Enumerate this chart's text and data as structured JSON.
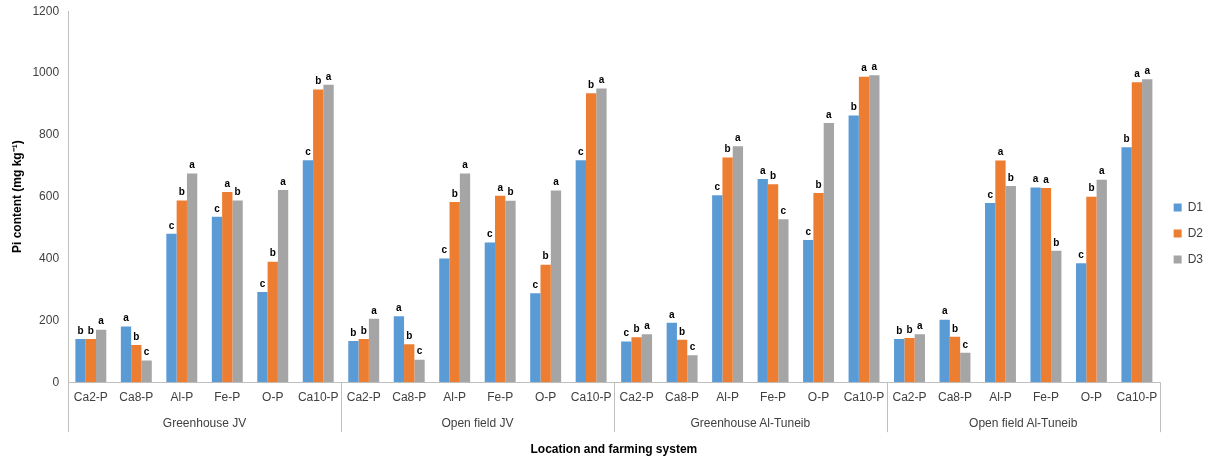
{
  "chart_data": {
    "type": "bar",
    "xlabel": "Location and farming system",
    "ylabel": "Pi content (mg kg⁻¹)",
    "categories": [
      "Ca2-P",
      "Ca8-P",
      "Al-P",
      "Fe-P",
      "O-P",
      "Ca10-P",
      "Ca2-P",
      "Ca8-P",
      "Al-P",
      "Fe-P",
      "O-P",
      "Ca10-P",
      "Ca2-P",
      "Ca8-P",
      "Al-P",
      "Fe-P",
      "O-P",
      "Ca10-P",
      "Ca2-P",
      "Ca8-P",
      "Al-P",
      "Fe-P",
      "O-P",
      "Ca10-P"
    ],
    "series": [
      {
        "name": "D1",
        "color": "#5b9bd5",
        "values": [
          140,
          180,
          480,
          535,
          292,
          718,
          133,
          213,
          400,
          452,
          288,
          718,
          132,
          192,
          605,
          657,
          460,
          863,
          140,
          202,
          580,
          630,
          385,
          760
        ],
        "value_labels": [
          "b",
          "a",
          "c",
          "c",
          "c",
          "c",
          "b",
          "a",
          "c",
          "c",
          "c",
          "c",
          "c",
          "a",
          "c",
          "a",
          "c",
          "b",
          "b",
          "a",
          "c",
          "a",
          "c",
          "b"
        ]
      },
      {
        "name": "D2",
        "color": "#ed7d31",
        "values": [
          140,
          120,
          588,
          615,
          390,
          947,
          140,
          123,
          583,
          603,
          380,
          935,
          145,
          137,
          727,
          640,
          612,
          988,
          143,
          147,
          717,
          628,
          600,
          970
        ],
        "value_labels": [
          "b",
          "b",
          "b",
          "a",
          "b",
          "b",
          "b",
          "b",
          "b",
          "a",
          "b",
          "b",
          "b",
          "b",
          "b",
          "b",
          "b",
          "a",
          "b",
          "b",
          "a",
          "a",
          "b",
          "a"
        ]
      },
      {
        "name": "D3",
        "color": "#a5a5a5",
        "values": [
          170,
          70,
          675,
          588,
          622,
          962,
          205,
          73,
          675,
          587,
          620,
          950,
          155,
          87,
          763,
          527,
          838,
          993,
          155,
          95,
          635,
          425,
          655,
          980
        ],
        "value_labels": [
          "a",
          "c",
          "a",
          "b",
          "a",
          "a",
          "a",
          "c",
          "a",
          "b",
          "a",
          "a",
          "a",
          "c",
          "a",
          "c",
          "a",
          "a",
          "a",
          "c",
          "b",
          "b",
          "a",
          "a"
        ]
      }
    ],
    "annotations": [
      "Greenhouse JV",
      "Open field JV",
      "Greenhouse Al-Tuneib",
      "Open field Al-Tuneib"
    ],
    "ylim": [
      0,
      1200
    ],
    "yticks": [
      0,
      200,
      400,
      600,
      800,
      1000,
      1200
    ],
    "grid": false,
    "legend": "right"
  }
}
